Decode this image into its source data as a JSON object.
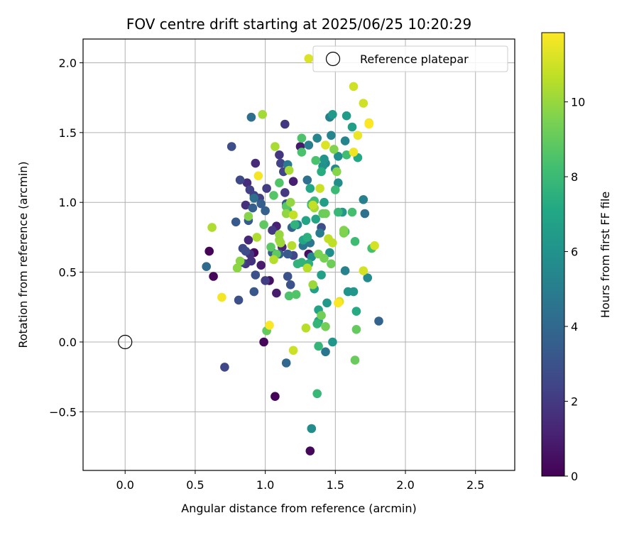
{
  "chart_data": {
    "type": "scatter",
    "title": "FOV centre drift starting at 2025/06/25 10:20:29",
    "xlabel": "Angular distance from reference (arcmin)",
    "ylabel": "Rotation from reference (arcmin)",
    "xlim": [
      -0.3,
      2.78
    ],
    "ylim": [
      -0.92,
      2.17
    ],
    "x_ticks": [
      0.0,
      0.5,
      1.0,
      1.5,
      2.0,
      2.5
    ],
    "x_tick_labels": [
      "0.0",
      "0.5",
      "1.0",
      "1.5",
      "2.0",
      "2.5"
    ],
    "y_ticks": [
      -0.5,
      0.0,
      0.5,
      1.0,
      1.5,
      2.0
    ],
    "y_tick_labels": [
      "−0.5",
      "0.0",
      "0.5",
      "1.0",
      "1.5",
      "2.0"
    ],
    "grid": true,
    "legend": {
      "position": "top-right",
      "entries": [
        "Reference platepar"
      ]
    },
    "reference_point": {
      "x": 0.0,
      "y": 0.0,
      "label": "Reference platepar",
      "marker": "open-circle"
    },
    "colorbar": {
      "label": "Hours from first FF file",
      "colormap": "viridis",
      "min": 0,
      "max": 11.85,
      "ticks": [
        0,
        2,
        4,
        6,
        8,
        10
      ],
      "tick_labels": [
        "0",
        "2",
        "4",
        "6",
        "8",
        "10"
      ]
    },
    "points": [
      [
        0.6,
        0.65,
        0.1
      ],
      [
        0.63,
        0.47,
        0.2
      ],
      [
        0.99,
        0.0,
        0.2
      ],
      [
        1.07,
        -0.39,
        0.1
      ],
      [
        1.32,
        -0.78,
        0.2
      ],
      [
        0.92,
        0.64,
        0.3
      ],
      [
        1.03,
        0.44,
        0.5
      ],
      [
        1.31,
        0.63,
        0.5
      ],
      [
        1.25,
        1.4,
        0.8
      ],
      [
        0.97,
        0.55,
        0.9
      ],
      [
        1.08,
        0.35,
        0.9
      ],
      [
        1.2,
        1.15,
        1.0
      ],
      [
        1.08,
        0.83,
        1.1
      ],
      [
        1.12,
        0.68,
        1.2
      ],
      [
        0.88,
        0.73,
        1.3
      ],
      [
        0.93,
        1.28,
        1.4
      ],
      [
        0.87,
        1.14,
        1.5
      ],
      [
        0.86,
        0.98,
        1.6
      ],
      [
        0.89,
        0.63,
        1.7
      ],
      [
        0.9,
        0.58,
        1.7
      ],
      [
        0.86,
        0.56,
        1.8
      ],
      [
        1.14,
        1.56,
        1.9
      ],
      [
        1.1,
        1.34,
        1.9
      ],
      [
        1.14,
        1.07,
        2.0
      ],
      [
        1.05,
        0.8,
        2.0
      ],
      [
        1.0,
        0.44,
        2.1
      ],
      [
        1.01,
        1.1,
        2.1
      ],
      [
        0.96,
        1.03,
        2.2
      ],
      [
        0.92,
        1.05,
        2.3
      ],
      [
        0.89,
        1.09,
        2.3
      ],
      [
        1.13,
        1.22,
        2.4
      ],
      [
        1.11,
        1.28,
        2.4
      ],
      [
        1.2,
        0.62,
        2.5
      ],
      [
        0.71,
        -0.18,
        2.5
      ],
      [
        0.82,
        1.16,
        2.6
      ],
      [
        0.84,
        0.67,
        2.6
      ],
      [
        0.86,
        0.65,
        2.7
      ],
      [
        0.83,
        0.57,
        2.7
      ],
      [
        0.76,
        1.4,
        2.8
      ],
      [
        1.4,
        0.82,
        2.8
      ],
      [
        0.93,
        0.48,
        2.9
      ],
      [
        0.81,
        0.3,
        2.9
      ],
      [
        1.16,
        0.47,
        3.0
      ],
      [
        1.18,
        0.41,
        3.0
      ],
      [
        1.15,
        0.99,
        3.1
      ],
      [
        0.92,
        0.36,
        3.2
      ],
      [
        0.79,
        0.86,
        3.3
      ],
      [
        0.88,
        0.87,
        3.4
      ],
      [
        1.16,
        0.63,
        3.4
      ],
      [
        1.1,
        0.63,
        3.5
      ],
      [
        1.05,
        0.64,
        3.5
      ],
      [
        0.91,
        0.96,
        3.6
      ],
      [
        0.97,
        0.99,
        3.6
      ],
      [
        1.0,
        0.94,
        3.7
      ],
      [
        1.19,
        0.82,
        3.8
      ],
      [
        1.81,
        0.15,
        3.8
      ],
      [
        1.15,
        -0.15,
        4.0
      ],
      [
        0.58,
        0.54,
        4.1
      ],
      [
        0.9,
        1.61,
        4.3
      ],
      [
        0.92,
        1.03,
        4.3
      ],
      [
        1.3,
        1.16,
        4.4
      ],
      [
        1.71,
        0.92,
        4.4
      ],
      [
        1.27,
        0.69,
        4.5
      ],
      [
        1.43,
        -0.07,
        4.6
      ],
      [
        1.32,
        0.71,
        4.7
      ],
      [
        1.16,
        1.27,
        4.8
      ],
      [
        1.39,
        0.78,
        4.9
      ],
      [
        1.31,
        1.41,
        5.0
      ],
      [
        1.46,
        1.61,
        5.1
      ],
      [
        1.7,
        1.02,
        5.1
      ],
      [
        1.23,
        0.84,
        5.2
      ],
      [
        1.57,
        0.51,
        5.2
      ],
      [
        1.57,
        1.44,
        5.3
      ],
      [
        1.47,
        1.48,
        5.3
      ],
      [
        1.37,
        1.46,
        5.4
      ],
      [
        1.5,
        1.24,
        5.5
      ],
      [
        1.43,
        1.28,
        5.5
      ],
      [
        1.33,
        0.61,
        5.6
      ],
      [
        1.73,
        0.46,
        5.6
      ],
      [
        1.33,
        -0.62,
        5.7
      ],
      [
        1.52,
        1.14,
        5.8
      ],
      [
        1.46,
        0.64,
        5.9
      ],
      [
        1.52,
        1.33,
        5.9
      ],
      [
        1.41,
        1.26,
        6.0
      ],
      [
        1.42,
        1.31,
        6.1
      ],
      [
        1.59,
        0.36,
        6.1
      ],
      [
        1.63,
        0.36,
        6.2
      ],
      [
        1.48,
        0.0,
        6.2
      ],
      [
        1.44,
        0.28,
        6.3
      ],
      [
        1.55,
        0.93,
        6.3
      ],
      [
        1.48,
        1.63,
        6.4
      ],
      [
        1.58,
        1.62,
        6.5
      ],
      [
        1.62,
        1.54,
        6.6
      ],
      [
        1.42,
        1.0,
        6.6
      ],
      [
        1.4,
        0.48,
        6.7
      ],
      [
        1.35,
        0.38,
        6.7
      ],
      [
        1.38,
        0.23,
        6.8
      ],
      [
        1.38,
        0.15,
        6.8
      ],
      [
        1.36,
        0.88,
        6.9
      ],
      [
        1.29,
        0.87,
        6.9
      ],
      [
        1.27,
        0.73,
        7.0
      ],
      [
        1.32,
        1.1,
        7.0
      ],
      [
        1.66,
        1.32,
        7.1
      ],
      [
        1.65,
        0.22,
        7.2
      ],
      [
        1.4,
        1.22,
        7.3
      ],
      [
        1.33,
        0.98,
        7.4
      ],
      [
        1.3,
        0.75,
        7.5
      ],
      [
        1.31,
        0.56,
        7.5
      ],
      [
        1.16,
        0.94,
        7.6
      ],
      [
        1.21,
        0.84,
        7.6
      ],
      [
        1.26,
        0.57,
        7.7
      ],
      [
        1.23,
        0.56,
        7.7
      ],
      [
        1.37,
        0.13,
        7.8
      ],
      [
        1.38,
        -0.03,
        7.8
      ],
      [
        1.37,
        -0.37,
        7.9
      ],
      [
        1.52,
        0.93,
        7.9
      ],
      [
        1.5,
        1.09,
        8.0
      ],
      [
        1.33,
        0.99,
        8.0
      ],
      [
        1.35,
        1.01,
        8.1
      ],
      [
        1.64,
        0.72,
        8.1
      ],
      [
        1.57,
        0.79,
        8.2
      ],
      [
        1.58,
        1.34,
        8.2
      ],
      [
        1.62,
        0.93,
        8.3
      ],
      [
        1.76,
        0.67,
        8.3
      ],
      [
        1.36,
        1.3,
        8.4
      ],
      [
        1.26,
        1.36,
        8.4
      ],
      [
        1.26,
        1.46,
        8.5
      ],
      [
        1.17,
        0.33,
        8.5
      ],
      [
        1.22,
        0.34,
        8.6
      ],
      [
        1.1,
        1.14,
        8.6
      ],
      [
        1.15,
        0.97,
        8.7
      ],
      [
        1.06,
        1.05,
        8.7
      ],
      [
        1.04,
        0.68,
        8.8
      ],
      [
        1.08,
        0.63,
        8.9
      ],
      [
        0.99,
        0.84,
        8.9
      ],
      [
        1.01,
        0.08,
        9.0
      ],
      [
        1.65,
        0.09,
        9.0
      ],
      [
        1.64,
        -0.13,
        9.1
      ],
      [
        1.41,
        0.92,
        9.1
      ],
      [
        1.43,
        0.92,
        9.2
      ],
      [
        1.47,
        0.56,
        9.2
      ],
      [
        1.43,
        0.11,
        9.3
      ],
      [
        1.4,
        0.19,
        9.3
      ],
      [
        1.42,
        0.6,
        9.4
      ],
      [
        1.38,
        0.63,
        9.5
      ],
      [
        1.56,
        0.78,
        9.5
      ],
      [
        1.56,
        0.8,
        9.6
      ],
      [
        1.49,
        1.38,
        9.6
      ],
      [
        1.51,
        1.22,
        9.7
      ],
      [
        0.88,
        0.9,
        9.7
      ],
      [
        0.8,
        0.53,
        9.8
      ],
      [
        0.82,
        0.58,
        9.8
      ],
      [
        1.15,
        0.92,
        9.9
      ],
      [
        1.18,
        1.0,
        9.9
      ],
      [
        1.1,
        0.77,
        10.0
      ],
      [
        1.1,
        0.73,
        10.0
      ],
      [
        1.11,
        0.71,
        10.1
      ],
      [
        1.34,
        0.41,
        10.1
      ],
      [
        1.35,
        0.96,
        10.2
      ],
      [
        0.98,
        1.63,
        10.2
      ],
      [
        1.07,
        1.4,
        10.3
      ],
      [
        1.17,
        1.23,
        10.3
      ],
      [
        0.62,
        0.82,
        10.4
      ],
      [
        0.94,
        0.75,
        10.4
      ],
      [
        1.06,
        0.59,
        10.5
      ],
      [
        1.19,
        0.69,
        10.5
      ],
      [
        1.3,
        0.53,
        10.6
      ],
      [
        1.29,
        0.1,
        10.6
      ],
      [
        1.45,
        0.74,
        10.7
      ],
      [
        1.48,
        0.71,
        10.7
      ],
      [
        1.34,
        0.98,
        10.8
      ],
      [
        1.2,
        0.91,
        10.8
      ],
      [
        1.39,
        1.1,
        10.9
      ],
      [
        1.2,
        -0.06,
        10.9
      ],
      [
        1.63,
        1.83,
        11.0
      ],
      [
        1.7,
        1.71,
        11.0
      ],
      [
        1.78,
        0.69,
        11.1
      ],
      [
        1.7,
        0.51,
        11.1
      ],
      [
        1.31,
        2.03,
        11.2
      ],
      [
        1.43,
        1.41,
        11.2
      ],
      [
        1.53,
        0.29,
        11.3
      ],
      [
        1.66,
        1.48,
        11.5
      ],
      [
        1.74,
        1.57,
        11.6
      ],
      [
        1.63,
        1.36,
        11.6
      ],
      [
        0.95,
        1.19,
        11.7
      ],
      [
        0.69,
        0.32,
        11.7
      ],
      [
        1.03,
        0.12,
        11.8
      ],
      [
        1.52,
        0.28,
        11.8
      ],
      [
        1.74,
        1.56,
        11.85
      ]
    ]
  }
}
